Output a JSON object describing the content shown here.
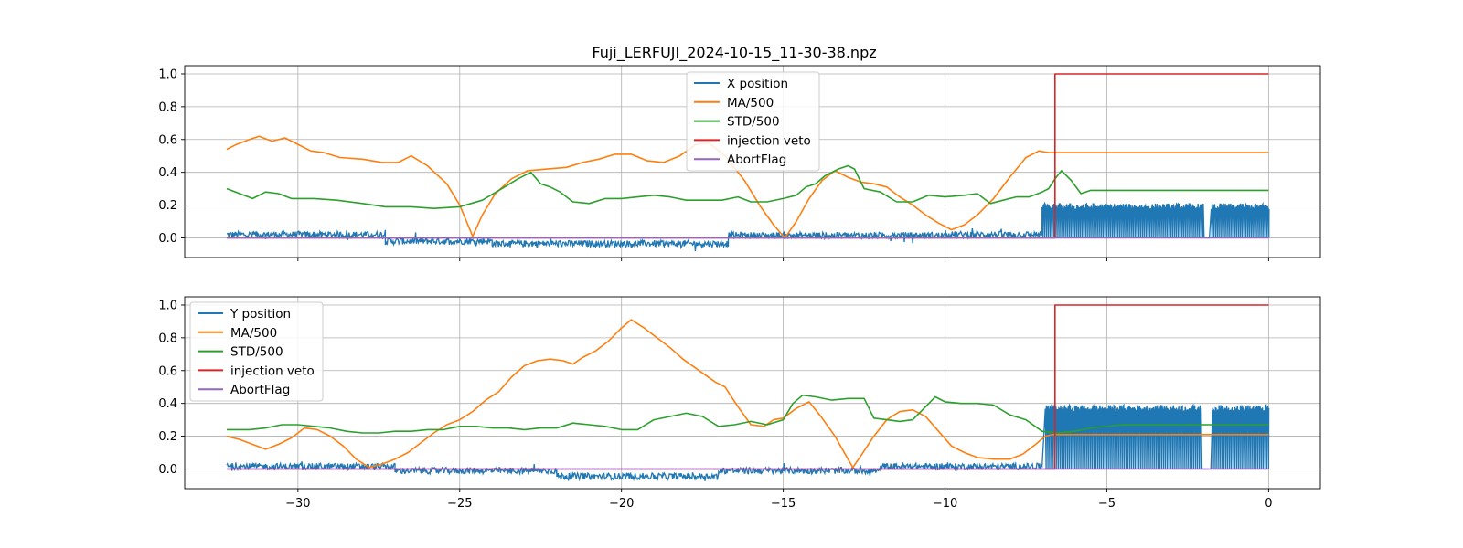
{
  "title": "Fuji_LERFUJI_2024-10-15_11-30-38.npz",
  "chart_data": [
    {
      "type": "line",
      "title": "Fuji_LERFUJI_2024-10-15_11-30-38.npz",
      "xlim": [
        -33.5,
        1.6
      ],
      "ylim": [
        -0.12,
        1.05
      ],
      "xticks": [
        -30,
        -25,
        -20,
        -15,
        -10,
        -5,
        0
      ],
      "yticks": [
        0.0,
        0.2,
        0.4,
        0.6,
        0.8,
        1.0
      ],
      "grid": true,
      "legend_position": "top-center",
      "series": [
        {
          "name": "X position",
          "color": "#1f77b4",
          "kind": "noisy",
          "segments": [
            {
              "x0": -32.2,
              "x1": -27.3,
              "level": 0.02
            },
            {
              "x0": -27.3,
              "x1": -24.0,
              "level": -0.02
            },
            {
              "x0": -24.0,
              "x1": -16.7,
              "level": -0.035
            },
            {
              "x0": -16.7,
              "x1": -10.0,
              "level": 0.015
            },
            {
              "x0": -10.0,
              "x1": -7.0,
              "level": 0.02
            }
          ],
          "burst": {
            "x0": -7.0,
            "x1": 0.0,
            "low": 0.0,
            "high": 0.19,
            "gap": [
              -2.0,
              -1.8
            ]
          }
        },
        {
          "name": "MA/500",
          "color": "#ff7f0e",
          "x": [
            -32.2,
            -31.9,
            -31.5,
            -31.2,
            -30.8,
            -30.4,
            -30.1,
            -29.6,
            -29.2,
            -28.7,
            -28.0,
            -27.4,
            -26.9,
            -26.5,
            -26.0,
            -25.4,
            -25.0,
            -24.6,
            -24.3,
            -23.9,
            -23.4,
            -22.9,
            -22.3,
            -21.7,
            -21.2,
            -20.7,
            -20.2,
            -19.7,
            -19.2,
            -18.7,
            -18.2,
            -17.7,
            -17.3,
            -16.8,
            -16.2,
            -15.7,
            -15.3,
            -14.95,
            -14.6,
            -14.2,
            -13.8,
            -13.4,
            -13.0,
            -12.6,
            -12.2,
            -11.8,
            -11.4,
            -11.0,
            -10.6,
            -10.2,
            -9.8,
            -9.4,
            -9.0,
            -8.5,
            -8.0,
            -7.5,
            -7.1,
            -6.8,
            0.0
          ],
          "y": [
            0.54,
            0.57,
            0.6,
            0.62,
            0.59,
            0.61,
            0.58,
            0.53,
            0.52,
            0.49,
            0.48,
            0.46,
            0.46,
            0.5,
            0.44,
            0.33,
            0.2,
            0.01,
            0.14,
            0.27,
            0.36,
            0.41,
            0.42,
            0.43,
            0.46,
            0.48,
            0.51,
            0.51,
            0.47,
            0.46,
            0.5,
            0.57,
            0.58,
            0.5,
            0.35,
            0.19,
            0.08,
            0.0,
            0.1,
            0.24,
            0.35,
            0.41,
            0.37,
            0.34,
            0.33,
            0.31,
            0.25,
            0.2,
            0.14,
            0.09,
            0.05,
            0.08,
            0.14,
            0.24,
            0.37,
            0.49,
            0.53,
            0.52,
            0.52
          ]
        },
        {
          "name": "STD/500",
          "color": "#2ca02c",
          "x": [
            -32.2,
            -31.8,
            -31.4,
            -31.0,
            -30.6,
            -30.2,
            -29.5,
            -28.8,
            -28.0,
            -27.3,
            -26.5,
            -25.8,
            -25.0,
            -24.3,
            -23.7,
            -23.2,
            -22.8,
            -22.5,
            -22.2,
            -21.9,
            -21.5,
            -21.0,
            -20.5,
            -20.0,
            -19.5,
            -19.0,
            -18.5,
            -18.0,
            -17.4,
            -16.9,
            -16.4,
            -16.0,
            -15.5,
            -15.0,
            -14.6,
            -14.3,
            -14.0,
            -13.7,
            -13.3,
            -13.0,
            -12.8,
            -12.5,
            -12.0,
            -11.5,
            -11.0,
            -10.5,
            -10.0,
            -9.4,
            -9.0,
            -8.6,
            -8.2,
            -7.8,
            -7.4,
            -7.0,
            -6.8,
            -6.6,
            -6.4,
            -6.1,
            -5.8,
            -5.5,
            -5.0,
            0.0
          ],
          "y": [
            0.3,
            0.27,
            0.24,
            0.28,
            0.27,
            0.24,
            0.24,
            0.23,
            0.21,
            0.19,
            0.19,
            0.18,
            0.19,
            0.23,
            0.3,
            0.36,
            0.4,
            0.33,
            0.31,
            0.28,
            0.22,
            0.21,
            0.24,
            0.24,
            0.25,
            0.26,
            0.25,
            0.23,
            0.23,
            0.23,
            0.25,
            0.22,
            0.22,
            0.24,
            0.26,
            0.31,
            0.33,
            0.38,
            0.42,
            0.44,
            0.42,
            0.3,
            0.28,
            0.22,
            0.22,
            0.26,
            0.25,
            0.26,
            0.27,
            0.21,
            0.23,
            0.25,
            0.25,
            0.28,
            0.3,
            0.36,
            0.41,
            0.35,
            0.27,
            0.29,
            0.29,
            0.29
          ]
        },
        {
          "name": "injection veto",
          "color": "#d62728",
          "x": [
            -32.2,
            -6.6,
            -6.6,
            0.0
          ],
          "y": [
            0.0,
            0.0,
            1.0,
            1.0
          ]
        },
        {
          "name": "AbortFlag",
          "color": "#9467bd",
          "x": [
            -32.2,
            0.0
          ],
          "y": [
            0.0,
            0.0
          ]
        }
      ]
    },
    {
      "type": "line",
      "xlim": [
        -33.5,
        1.6
      ],
      "ylim": [
        -0.12,
        1.05
      ],
      "xticks": [
        -30,
        -25,
        -20,
        -15,
        -10,
        -5,
        0
      ],
      "xtick_labels": [
        "−30",
        "−25",
        "−20",
        "−15",
        "−10",
        "−5",
        "0"
      ],
      "yticks": [
        0.0,
        0.2,
        0.4,
        0.6,
        0.8,
        1.0
      ],
      "grid": true,
      "legend_position": "top-left",
      "series": [
        {
          "name": "Y position",
          "color": "#1f77b4",
          "kind": "noisy",
          "segments": [
            {
              "x0": -32.2,
              "x1": -27.0,
              "level": 0.015
            },
            {
              "x0": -27.0,
              "x1": -22.0,
              "level": -0.01
            },
            {
              "x0": -22.0,
              "x1": -17.0,
              "level": -0.045
            },
            {
              "x0": -17.0,
              "x1": -12.0,
              "level": -0.01
            },
            {
              "x0": -12.0,
              "x1": -7.0,
              "level": 0.015
            }
          ],
          "burst": {
            "x0": -6.9,
            "x1": 0.0,
            "low": 0.0,
            "high": 0.37,
            "gap": [
              -2.1,
              -1.75
            ]
          }
        },
        {
          "name": "MA/500",
          "color": "#ff7f0e",
          "x": [
            -32.2,
            -31.8,
            -31.4,
            -31.0,
            -30.6,
            -30.2,
            -29.8,
            -29.4,
            -29.0,
            -28.6,
            -28.2,
            -27.8,
            -27.4,
            -27.0,
            -26.6,
            -26.2,
            -25.8,
            -25.4,
            -25.0,
            -24.6,
            -24.2,
            -23.8,
            -23.4,
            -23.0,
            -22.6,
            -22.2,
            -21.8,
            -21.5,
            -21.2,
            -20.8,
            -20.4,
            -20.0,
            -19.7,
            -19.3,
            -18.9,
            -18.5,
            -18.1,
            -17.6,
            -17.1,
            -16.8,
            -16.4,
            -16.0,
            -15.6,
            -15.3,
            -15.0,
            -14.6,
            -14.2,
            -13.8,
            -13.4,
            -13.0,
            -12.85,
            -12.6,
            -12.2,
            -11.8,
            -11.4,
            -11.0,
            -10.6,
            -10.2,
            -9.8,
            -9.4,
            -9.0,
            -8.5,
            -8.0,
            -7.6,
            -7.2,
            -6.9,
            -6.7,
            0.0
          ],
          "y": [
            0.2,
            0.18,
            0.15,
            0.12,
            0.15,
            0.19,
            0.25,
            0.24,
            0.2,
            0.14,
            0.06,
            0.01,
            0.03,
            0.06,
            0.1,
            0.16,
            0.22,
            0.27,
            0.3,
            0.35,
            0.42,
            0.47,
            0.56,
            0.63,
            0.66,
            0.67,
            0.66,
            0.64,
            0.68,
            0.72,
            0.78,
            0.86,
            0.91,
            0.86,
            0.8,
            0.74,
            0.67,
            0.6,
            0.53,
            0.5,
            0.38,
            0.27,
            0.26,
            0.3,
            0.31,
            0.37,
            0.41,
            0.31,
            0.2,
            0.06,
            0.01,
            0.08,
            0.2,
            0.3,
            0.35,
            0.36,
            0.32,
            0.23,
            0.14,
            0.1,
            0.07,
            0.06,
            0.06,
            0.09,
            0.15,
            0.2,
            0.21,
            0.21
          ]
        },
        {
          "name": "STD/500",
          "color": "#2ca02c",
          "x": [
            -32.2,
            -31.5,
            -31.0,
            -30.5,
            -30.0,
            -29.5,
            -29.0,
            -28.5,
            -28.0,
            -27.5,
            -27.0,
            -26.5,
            -26.0,
            -25.5,
            -25.0,
            -24.5,
            -24.0,
            -23.5,
            -23.0,
            -22.5,
            -22.0,
            -21.5,
            -21.0,
            -20.5,
            -20.0,
            -19.5,
            -19.0,
            -18.5,
            -18.0,
            -17.5,
            -17.0,
            -16.5,
            -16.0,
            -15.5,
            -15.0,
            -14.7,
            -14.4,
            -14.0,
            -13.5,
            -13.0,
            -12.5,
            -12.2,
            -11.8,
            -11.4,
            -11.0,
            -10.6,
            -10.3,
            -10.0,
            -9.5,
            -9.0,
            -8.5,
            -8.0,
            -7.5,
            -7.0,
            -6.5,
            -6.0,
            -5.5,
            -5.0,
            -4.5,
            0.0
          ],
          "y": [
            0.24,
            0.24,
            0.25,
            0.27,
            0.27,
            0.26,
            0.25,
            0.23,
            0.22,
            0.22,
            0.23,
            0.23,
            0.24,
            0.24,
            0.26,
            0.26,
            0.25,
            0.25,
            0.24,
            0.25,
            0.25,
            0.28,
            0.27,
            0.26,
            0.24,
            0.24,
            0.3,
            0.32,
            0.34,
            0.32,
            0.26,
            0.27,
            0.29,
            0.27,
            0.3,
            0.4,
            0.45,
            0.44,
            0.42,
            0.43,
            0.43,
            0.31,
            0.3,
            0.29,
            0.3,
            0.38,
            0.44,
            0.41,
            0.4,
            0.4,
            0.39,
            0.33,
            0.3,
            0.23,
            0.22,
            0.23,
            0.25,
            0.26,
            0.27,
            0.27
          ]
        },
        {
          "name": "injection veto",
          "color": "#d62728",
          "x": [
            -32.2,
            -6.6,
            -6.6,
            0.0
          ],
          "y": [
            0.0,
            0.0,
            1.0,
            1.0
          ]
        },
        {
          "name": "AbortFlag",
          "color": "#9467bd",
          "x": [
            -32.2,
            0.0
          ],
          "y": [
            0.0,
            0.0
          ]
        }
      ]
    }
  ]
}
